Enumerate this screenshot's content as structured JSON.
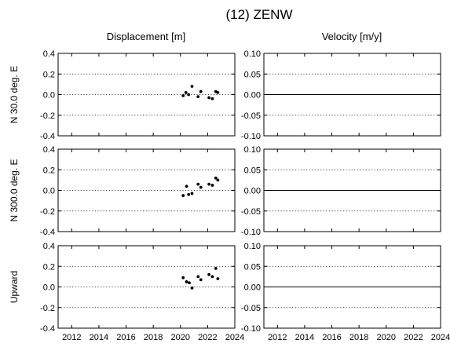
{
  "chart_data": {
    "title": "(12) ZENW",
    "type": "scatter",
    "columns": [
      {
        "title": "Displacement [m]",
        "ylim": [
          -0.4,
          0.4
        ],
        "yticks": [
          "0.4",
          "0.2",
          "0.0",
          "-0.2",
          "-0.4"
        ]
      },
      {
        "title": "Velocity [m/y]",
        "ylim": [
          -0.1,
          0.1
        ],
        "yticks": [
          "0.10",
          "0.05",
          "0.00",
          "-0.05",
          "-0.10"
        ]
      }
    ],
    "xlim": [
      2011,
      2024
    ],
    "xticks": [
      "2012",
      "2014",
      "2016",
      "2018",
      "2020",
      "2022",
      "2024"
    ],
    "rows": [
      {
        "label": "N  30.0 deg. E",
        "displacement": [
          [
            2020.2,
            -0.01
          ],
          [
            2020.4,
            0.02
          ],
          [
            2020.6,
            0.0
          ],
          [
            2020.85,
            0.08
          ],
          [
            2021.3,
            -0.02
          ],
          [
            2021.5,
            0.03
          ],
          [
            2022.1,
            -0.03
          ],
          [
            2022.35,
            -0.04
          ],
          [
            2022.6,
            0.03
          ],
          [
            2022.75,
            0.02
          ]
        ],
        "velocity": [
          0,
          0
        ]
      },
      {
        "label": "N 300.0 deg. E",
        "displacement": [
          [
            2020.2,
            -0.05
          ],
          [
            2020.45,
            0.04
          ],
          [
            2020.6,
            -0.04
          ],
          [
            2020.85,
            -0.03
          ],
          [
            2021.3,
            0.06
          ],
          [
            2021.5,
            0.03
          ],
          [
            2022.1,
            0.06
          ],
          [
            2022.35,
            0.05
          ],
          [
            2022.6,
            0.12
          ],
          [
            2022.75,
            0.1
          ]
        ],
        "velocity": [
          0,
          0
        ]
      },
      {
        "label": "Upward",
        "displacement": [
          [
            2020.2,
            0.09
          ],
          [
            2020.45,
            0.05
          ],
          [
            2020.65,
            0.04
          ],
          [
            2020.85,
            -0.01
          ],
          [
            2021.3,
            0.1
          ],
          [
            2021.5,
            0.07
          ],
          [
            2022.1,
            0.12
          ],
          [
            2022.35,
            0.1
          ],
          [
            2022.6,
            0.18
          ],
          [
            2022.75,
            0.08
          ]
        ],
        "velocity": [
          0,
          0
        ]
      }
    ]
  }
}
